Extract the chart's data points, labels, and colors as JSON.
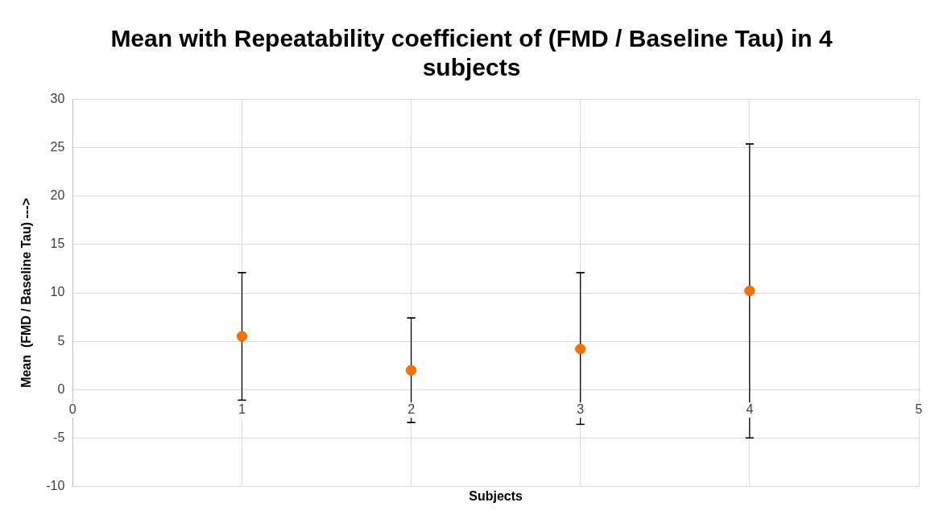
{
  "chart_data": {
    "type": "scatter",
    "title": "Mean with Repeatability coefficient of (FMD / Baseline Tau) in 4 subjects",
    "xlabel": "Subjects",
    "ylabel": "Mean  (FMD / Baseline Tau) --->",
    "x": [
      1,
      2,
      3,
      4
    ],
    "series": [
      {
        "color": "#ff7000",
        "values": [
          5.5,
          2.0,
          4.2,
          10.2
        ],
        "errors": [
          [
            -1.1,
            12.1
          ],
          [
            -3.4,
            7.4
          ],
          [
            -3.6,
            12.1
          ],
          [
            -5.0,
            25.4
          ]
        ]
      }
    ],
    "xlim": [
      0,
      5
    ],
    "xticks": [
      0,
      1,
      2,
      3,
      4,
      5
    ],
    "ylim": [
      -10,
      30
    ],
    "yticks": [
      -10,
      -5,
      0,
      5,
      10,
      15,
      20,
      25,
      30
    ],
    "grid": true,
    "marker": "circle",
    "legend": false
  }
}
